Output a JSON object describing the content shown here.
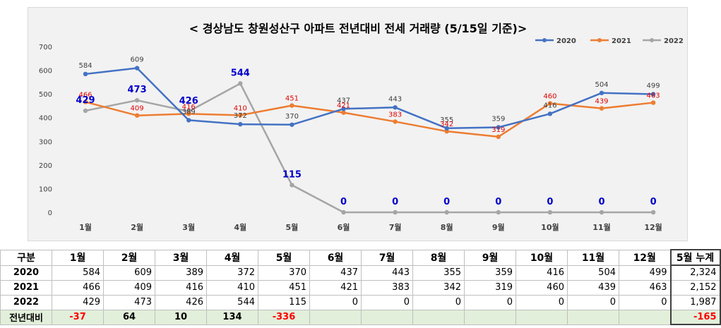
{
  "chart_data": {
    "type": "line",
    "title": "< 경상남도 창원성산구  아파트 전년대비 전세 거래량 (5/15일 기준)>",
    "categories": [
      "1월",
      "2월",
      "3월",
      "4월",
      "5월",
      "6월",
      "7월",
      "8월",
      "9월",
      "10월",
      "11월",
      "12월"
    ],
    "ylim": [
      0,
      700
    ],
    "yticks": [
      "0",
      "100",
      "200",
      "300",
      "400",
      "500",
      "600",
      "700"
    ],
    "grid": false,
    "legend_position": "top-right",
    "series": [
      {
        "name": "2020",
        "color": "#4472c4",
        "values": [
          584,
          609,
          389,
          372,
          370,
          437,
          443,
          355,
          359,
          416,
          504,
          499
        ]
      },
      {
        "name": "2021",
        "color": "#ed7d31",
        "values": [
          466,
          409,
          416,
          410,
          451,
          421,
          383,
          342,
          319,
          460,
          439,
          463
        ]
      },
      {
        "name": "2022",
        "color": "#a5a5a5",
        "values": [
          429,
          473,
          426,
          544,
          115,
          0,
          0,
          0,
          0,
          0,
          0,
          0
        ]
      }
    ]
  },
  "table": {
    "header_label": "구분",
    "months": [
      "1월",
      "2월",
      "3월",
      "4월",
      "5월",
      "6월",
      "7월",
      "8월",
      "9월",
      "10월",
      "11월",
      "12월"
    ],
    "total_label": "5월 누계",
    "rows": [
      {
        "label": "2020",
        "values": [
          "584",
          "609",
          "389",
          "372",
          "370",
          "437",
          "443",
          "355",
          "359",
          "416",
          "504",
          "499"
        ],
        "total": "2,324"
      },
      {
        "label": "2021",
        "values": [
          "466",
          "409",
          "416",
          "410",
          "451",
          "421",
          "383",
          "342",
          "319",
          "460",
          "439",
          "463"
        ],
        "total": "2,152"
      },
      {
        "label": "2022",
        "values": [
          "429",
          "473",
          "426",
          "544",
          "115",
          "0",
          "0",
          "0",
          "0",
          "0",
          "0",
          "0"
        ],
        "total": "1,987"
      }
    ],
    "diff_row": {
      "label": "전년대비",
      "values": [
        "-37",
        "64",
        "10",
        "134",
        "-336",
        "",
        "",
        "",
        "",
        "",
        "",
        ""
      ],
      "total": "-165"
    }
  }
}
